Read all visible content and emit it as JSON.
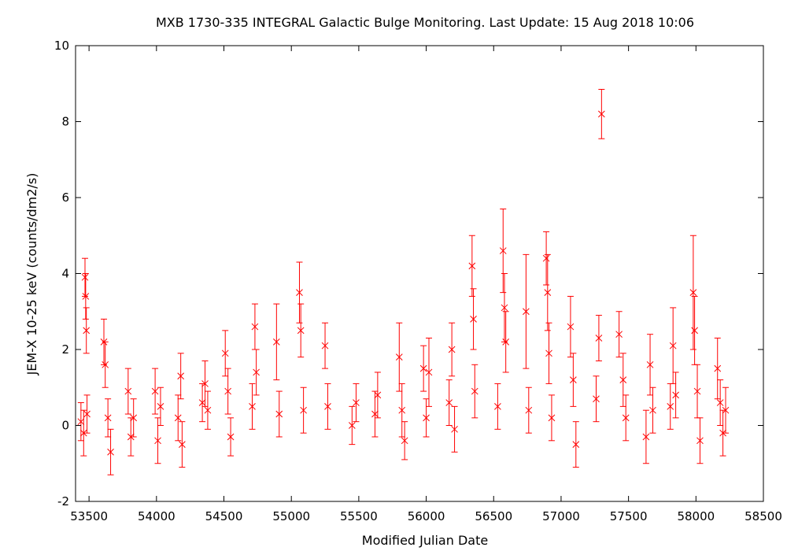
{
  "chart_data": {
    "type": "scatter",
    "title": "MXB 1730-335   INTEGRAL Galactic Bulge Monitoring.  Last Update: 15 Aug 2018 10:06",
    "xlabel": "Modified Julian Date",
    "ylabel": "JEM-X 10-25 keV (counts/dm2/s)",
    "xlim": [
      53400,
      58500
    ],
    "ylim": [
      -2,
      10
    ],
    "xticks": [
      53500,
      54000,
      54500,
      55000,
      55500,
      56000,
      56500,
      57000,
      57500,
      58000,
      58500
    ],
    "yticks": [
      -2,
      0,
      2,
      4,
      6,
      8,
      10
    ],
    "xtick_labels": [
      "53500",
      "54000",
      "54500",
      "55000",
      "55500",
      "56000",
      "56500",
      "57000",
      "57500",
      "58000",
      "58500"
    ],
    "ytick_labels": [
      "-2",
      "0",
      "2",
      "4",
      "6",
      "8",
      "10"
    ],
    "grid": false,
    "legend": "none",
    "marker": "x",
    "error_bars": true,
    "color": "#ff0000",
    "series": [
      {
        "points": [
          {
            "x": 53440,
            "y": 0.1,
            "err": 0.5
          },
          {
            "x": 53460,
            "y": -0.2,
            "err": 0.6
          },
          {
            "x": 53470,
            "y": 3.9,
            "err": 0.5
          },
          {
            "x": 53475,
            "y": 3.4,
            "err": 0.6
          },
          {
            "x": 53480,
            "y": 2.5,
            "err": 0.6
          },
          {
            "x": 53485,
            "y": 0.3,
            "err": 0.5
          },
          {
            "x": 53610,
            "y": 2.2,
            "err": 0.6
          },
          {
            "x": 53620,
            "y": 1.6,
            "err": 0.6
          },
          {
            "x": 53640,
            "y": 0.2,
            "err": 0.5
          },
          {
            "x": 53660,
            "y": -0.7,
            "err": 0.6
          },
          {
            "x": 53790,
            "y": 0.9,
            "err": 0.6
          },
          {
            "x": 53810,
            "y": -0.3,
            "err": 0.5
          },
          {
            "x": 53830,
            "y": 0.2,
            "err": 0.5
          },
          {
            "x": 53990,
            "y": 0.9,
            "err": 0.6
          },
          {
            "x": 54010,
            "y": -0.4,
            "err": 0.6
          },
          {
            "x": 54030,
            "y": 0.5,
            "err": 0.5
          },
          {
            "x": 54160,
            "y": 0.2,
            "err": 0.6
          },
          {
            "x": 54180,
            "y": 1.3,
            "err": 0.6
          },
          {
            "x": 54190,
            "y": -0.5,
            "err": 0.6
          },
          {
            "x": 54340,
            "y": 0.6,
            "err": 0.5
          },
          {
            "x": 54360,
            "y": 1.1,
            "err": 0.6
          },
          {
            "x": 54380,
            "y": 0.4,
            "err": 0.5
          },
          {
            "x": 54510,
            "y": 1.9,
            "err": 0.6
          },
          {
            "x": 54530,
            "y": 0.9,
            "err": 0.6
          },
          {
            "x": 54550,
            "y": -0.3,
            "err": 0.5
          },
          {
            "x": 54710,
            "y": 0.5,
            "err": 0.6
          },
          {
            "x": 54730,
            "y": 2.6,
            "err": 0.6
          },
          {
            "x": 54740,
            "y": 1.4,
            "err": 0.6
          },
          {
            "x": 54890,
            "y": 2.2,
            "err": 1.0
          },
          {
            "x": 54910,
            "y": 0.3,
            "err": 0.6
          },
          {
            "x": 55060,
            "y": 3.5,
            "err": 0.8
          },
          {
            "x": 55070,
            "y": 2.5,
            "err": 0.7
          },
          {
            "x": 55090,
            "y": 0.4,
            "err": 0.6
          },
          {
            "x": 55250,
            "y": 2.1,
            "err": 0.6
          },
          {
            "x": 55270,
            "y": 0.5,
            "err": 0.6
          },
          {
            "x": 55450,
            "y": 0.0,
            "err": 0.5
          },
          {
            "x": 55480,
            "y": 0.6,
            "err": 0.5
          },
          {
            "x": 55620,
            "y": 0.3,
            "err": 0.6
          },
          {
            "x": 55640,
            "y": 0.8,
            "err": 0.6
          },
          {
            "x": 55800,
            "y": 1.8,
            "err": 0.9
          },
          {
            "x": 55820,
            "y": 0.4,
            "err": 0.7
          },
          {
            "x": 55840,
            "y": -0.4,
            "err": 0.5
          },
          {
            "x": 55980,
            "y": 1.5,
            "err": 0.6
          },
          {
            "x": 56000,
            "y": 0.2,
            "err": 0.5
          },
          {
            "x": 56020,
            "y": 1.4,
            "err": 0.9
          },
          {
            "x": 56170,
            "y": 0.6,
            "err": 0.6
          },
          {
            "x": 56190,
            "y": 2.0,
            "err": 0.7
          },
          {
            "x": 56210,
            "y": -0.1,
            "err": 0.6
          },
          {
            "x": 56340,
            "y": 4.2,
            "err": 0.8
          },
          {
            "x": 56350,
            "y": 2.8,
            "err": 0.8
          },
          {
            "x": 56360,
            "y": 0.9,
            "err": 0.7
          },
          {
            "x": 56530,
            "y": 0.5,
            "err": 0.6
          },
          {
            "x": 56570,
            "y": 4.6,
            "err": 1.1
          },
          {
            "x": 56580,
            "y": 3.1,
            "err": 0.9
          },
          {
            "x": 56590,
            "y": 2.2,
            "err": 0.8
          },
          {
            "x": 56740,
            "y": 3.0,
            "err": 1.5
          },
          {
            "x": 56760,
            "y": 0.4,
            "err": 0.6
          },
          {
            "x": 56890,
            "y": 4.4,
            "err": 0.7
          },
          {
            "x": 56900,
            "y": 3.5,
            "err": 1.0
          },
          {
            "x": 56910,
            "y": 1.9,
            "err": 0.8
          },
          {
            "x": 56930,
            "y": 0.2,
            "err": 0.6
          },
          {
            "x": 57070,
            "y": 2.6,
            "err": 0.8
          },
          {
            "x": 57090,
            "y": 1.2,
            "err": 0.7
          },
          {
            "x": 57110,
            "y": -0.5,
            "err": 0.6
          },
          {
            "x": 57260,
            "y": 0.7,
            "err": 0.6
          },
          {
            "x": 57280,
            "y": 2.3,
            "err": 0.6
          },
          {
            "x": 57300,
            "y": 8.2,
            "err": 0.65
          },
          {
            "x": 57430,
            "y": 2.4,
            "err": 0.6
          },
          {
            "x": 57460,
            "y": 1.2,
            "err": 0.7
          },
          {
            "x": 57480,
            "y": 0.2,
            "err": 0.6
          },
          {
            "x": 57630,
            "y": -0.3,
            "err": 0.7
          },
          {
            "x": 57660,
            "y": 1.6,
            "err": 0.8
          },
          {
            "x": 57680,
            "y": 0.4,
            "err": 0.6
          },
          {
            "x": 57810,
            "y": 0.5,
            "err": 0.6
          },
          {
            "x": 57830,
            "y": 2.1,
            "err": 1.0
          },
          {
            "x": 57850,
            "y": 0.8,
            "err": 0.6
          },
          {
            "x": 57980,
            "y": 3.5,
            "err": 1.5
          },
          {
            "x": 57990,
            "y": 2.5,
            "err": 0.9
          },
          {
            "x": 58010,
            "y": 0.9,
            "err": 0.7
          },
          {
            "x": 58030,
            "y": -0.4,
            "err": 0.6
          },
          {
            "x": 58160,
            "y": 1.5,
            "err": 0.8
          },
          {
            "x": 58180,
            "y": 0.6,
            "err": 0.6
          },
          {
            "x": 58200,
            "y": -0.2,
            "err": 0.6
          },
          {
            "x": 58220,
            "y": 0.4,
            "err": 0.6
          }
        ]
      }
    ]
  }
}
